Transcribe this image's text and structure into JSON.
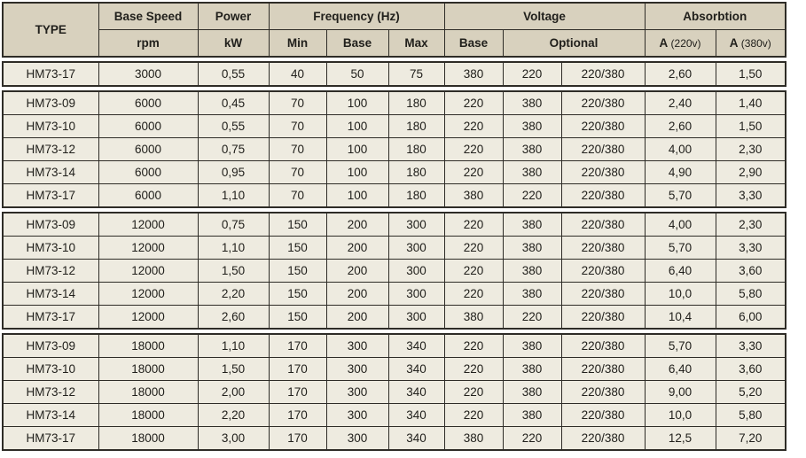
{
  "colors": {
    "border": "#2e2c27",
    "header_bg": "#d8d1be",
    "shaded_cell_bg": "#d8d1be",
    "light_cell_bg": "#eeebe0",
    "text": "#21201c"
  },
  "table": {
    "headers": {
      "type": "TYPE",
      "base_speed": "Base Speed",
      "rpm": "rpm",
      "power": "Power",
      "kw": "kW",
      "frequency": "Frequency (Hz)",
      "min": "Min",
      "base": "Base",
      "max": "Max",
      "voltage": "Voltage",
      "v_base": "Base",
      "optional": "Optional",
      "absorbtion": "Absorbtion",
      "a_letter": "A",
      "a220_sub": "(220v)",
      "a380_sub": "(380v)"
    },
    "groups": [
      {
        "rows": [
          [
            "HM73-17",
            "3000",
            "0,55",
            "40",
            "50",
            "75",
            "380",
            "220",
            "220/380",
            "2,60",
            "1,50"
          ]
        ]
      },
      {
        "rows": [
          [
            "HM73-09",
            "6000",
            "0,45",
            "70",
            "100",
            "180",
            "220",
            "380",
            "220/380",
            "2,40",
            "1,40"
          ],
          [
            "HM73-10",
            "6000",
            "0,55",
            "70",
            "100",
            "180",
            "220",
            "380",
            "220/380",
            "2,60",
            "1,50"
          ],
          [
            "HM73-12",
            "6000",
            "0,75",
            "70",
            "100",
            "180",
            "220",
            "380",
            "220/380",
            "4,00",
            "2,30"
          ],
          [
            "HM73-14",
            "6000",
            "0,95",
            "70",
            "100",
            "180",
            "220",
            "380",
            "220/380",
            "4,90",
            "2,90"
          ],
          [
            "HM73-17",
            "6000",
            "1,10",
            "70",
            "100",
            "180",
            "380",
            "220",
            "220/380",
            "5,70",
            "3,30"
          ]
        ]
      },
      {
        "rows": [
          [
            "HM73-09",
            "12000",
            "0,75",
            "150",
            "200",
            "300",
            "220",
            "380",
            "220/380",
            "4,00",
            "2,30"
          ],
          [
            "HM73-10",
            "12000",
            "1,10",
            "150",
            "200",
            "300",
            "220",
            "380",
            "220/380",
            "5,70",
            "3,30"
          ],
          [
            "HM73-12",
            "12000",
            "1,50",
            "150",
            "200",
            "300",
            "220",
            "380",
            "220/380",
            "6,40",
            "3,60"
          ],
          [
            "HM73-14",
            "12000",
            "2,20",
            "150",
            "200",
            "300",
            "220",
            "380",
            "220/380",
            "10,0",
            "5,80"
          ],
          [
            "HM73-17",
            "12000",
            "2,60",
            "150",
            "200",
            "300",
            "380",
            "220",
            "220/380",
            "10,4",
            "6,00"
          ]
        ]
      },
      {
        "rows": [
          [
            "HM73-09",
            "18000",
            "1,10",
            "170",
            "300",
            "340",
            "220",
            "380",
            "220/380",
            "5,70",
            "3,30"
          ],
          [
            "HM73-10",
            "18000",
            "1,50",
            "170",
            "300",
            "340",
            "220",
            "380",
            "220/380",
            "6,40",
            "3,60"
          ],
          [
            "HM73-12",
            "18000",
            "2,00",
            "170",
            "300",
            "340",
            "220",
            "380",
            "220/380",
            "9,00",
            "5,20"
          ],
          [
            "HM73-14",
            "18000",
            "2,20",
            "170",
            "300",
            "340",
            "220",
            "380",
            "220/380",
            "10,0",
            "5,80"
          ],
          [
            "HM73-17",
            "18000",
            "3,00",
            "170",
            "300",
            "340",
            "380",
            "220",
            "220/380",
            "12,5",
            "7,20"
          ]
        ]
      }
    ]
  }
}
